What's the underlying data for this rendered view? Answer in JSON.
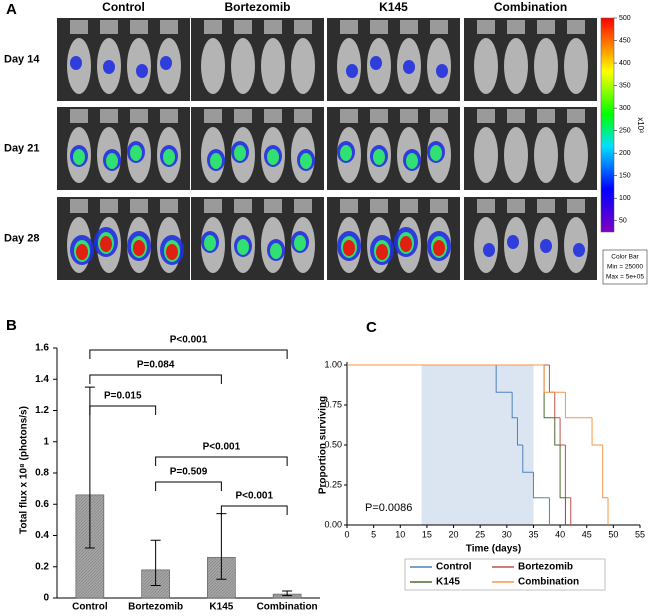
{
  "panel_a": {
    "label": "A",
    "columns": [
      "Control",
      "Bortezomib",
      "K145",
      "Combination"
    ],
    "rows": [
      "Day 14",
      "Day 21",
      "Day 28"
    ],
    "colorbar": {
      "unit": "x10³",
      "lim": [
        25,
        500
      ],
      "ticks": [
        50,
        100,
        150,
        200,
        250,
        300,
        350,
        400,
        450,
        500
      ],
      "note": [
        "Color Bar",
        "Min = 25000",
        "Max = 5e+05"
      ]
    }
  },
  "chart_data": [
    {
      "type": "bar",
      "panel": "B",
      "y_label": "Total flux x 10⁸ (photons/s)",
      "categories": [
        "Control",
        "Bortezomib",
        "K145",
        "Combination"
      ],
      "values": [
        0.66,
        0.18,
        0.26,
        0.025
      ],
      "ci_low": [
        0.32,
        0.08,
        0.12,
        0.015
      ],
      "ci_high": [
        1.35,
        0.37,
        0.54,
        0.045
      ],
      "color": "#a6a6a6",
      "ylim": [
        0,
        1.6
      ],
      "yticks": [
        0,
        0.2,
        0.4,
        0.6,
        0.8,
        1,
        1.2,
        1.4,
        1.6
      ],
      "comparisons": [
        {
          "groups": [
            "Control",
            "Combination"
          ],
          "label": "P<0.001"
        },
        {
          "groups": [
            "Control",
            "K145"
          ],
          "label": "P=0.084"
        },
        {
          "groups": [
            "Control",
            "Bortezomib"
          ],
          "label": "P=0.015"
        },
        {
          "groups": [
            "Bortezomib",
            "Combination"
          ],
          "label": "P<0.001"
        },
        {
          "groups": [
            "Bortezomib",
            "K145"
          ],
          "label": "P=0.509"
        },
        {
          "groups": [
            "K145",
            "Combination"
          ],
          "label": "P<0.001"
        }
      ]
    },
    {
      "type": "step",
      "panel": "C",
      "x_label": "Time (days)",
      "y_label": "Proportion surviving",
      "annotation": "P=0.0086",
      "shade": [
        14,
        35
      ],
      "xlim": [
        0,
        55
      ],
      "xticks": [
        0,
        5,
        10,
        15,
        20,
        25,
        30,
        35,
        40,
        45,
        50,
        55
      ],
      "ylim": [
        0,
        1
      ],
      "yticks": [
        {
          "value": 0,
          "label": "0.00"
        },
        {
          "value": 0.25,
          "label": "0.25"
        },
        {
          "value": 0.5,
          "label": "0.50"
        },
        {
          "value": 0.75,
          "label": "0.75"
        },
        {
          "value": 1,
          "label": "1.00"
        }
      ],
      "series": [
        {
          "name": "Control",
          "color": "#4f81bd",
          "x": [
            0,
            28,
            31,
            32,
            33,
            35,
            38
          ],
          "values": [
            1,
            0.83,
            0.67,
            0.5,
            0.33,
            0.17,
            0
          ]
        },
        {
          "name": "Bortezomib",
          "color": "#c0504d",
          "x": [
            0,
            38,
            39,
            40,
            41,
            42
          ],
          "values": [
            1,
            0.83,
            0.67,
            0.5,
            0.17,
            0
          ]
        },
        {
          "name": "K145",
          "color": "#4b6b32",
          "x": [
            0,
            37,
            39,
            40,
            41
          ],
          "values": [
            1,
            0.67,
            0.5,
            0.17,
            0
          ]
        },
        {
          "name": "Combination",
          "color": "#f79646",
          "x": [
            0,
            37,
            41,
            46,
            48,
            49
          ],
          "values": [
            1,
            0.83,
            0.67,
            0.5,
            0.17,
            0
          ]
        }
      ]
    }
  ]
}
